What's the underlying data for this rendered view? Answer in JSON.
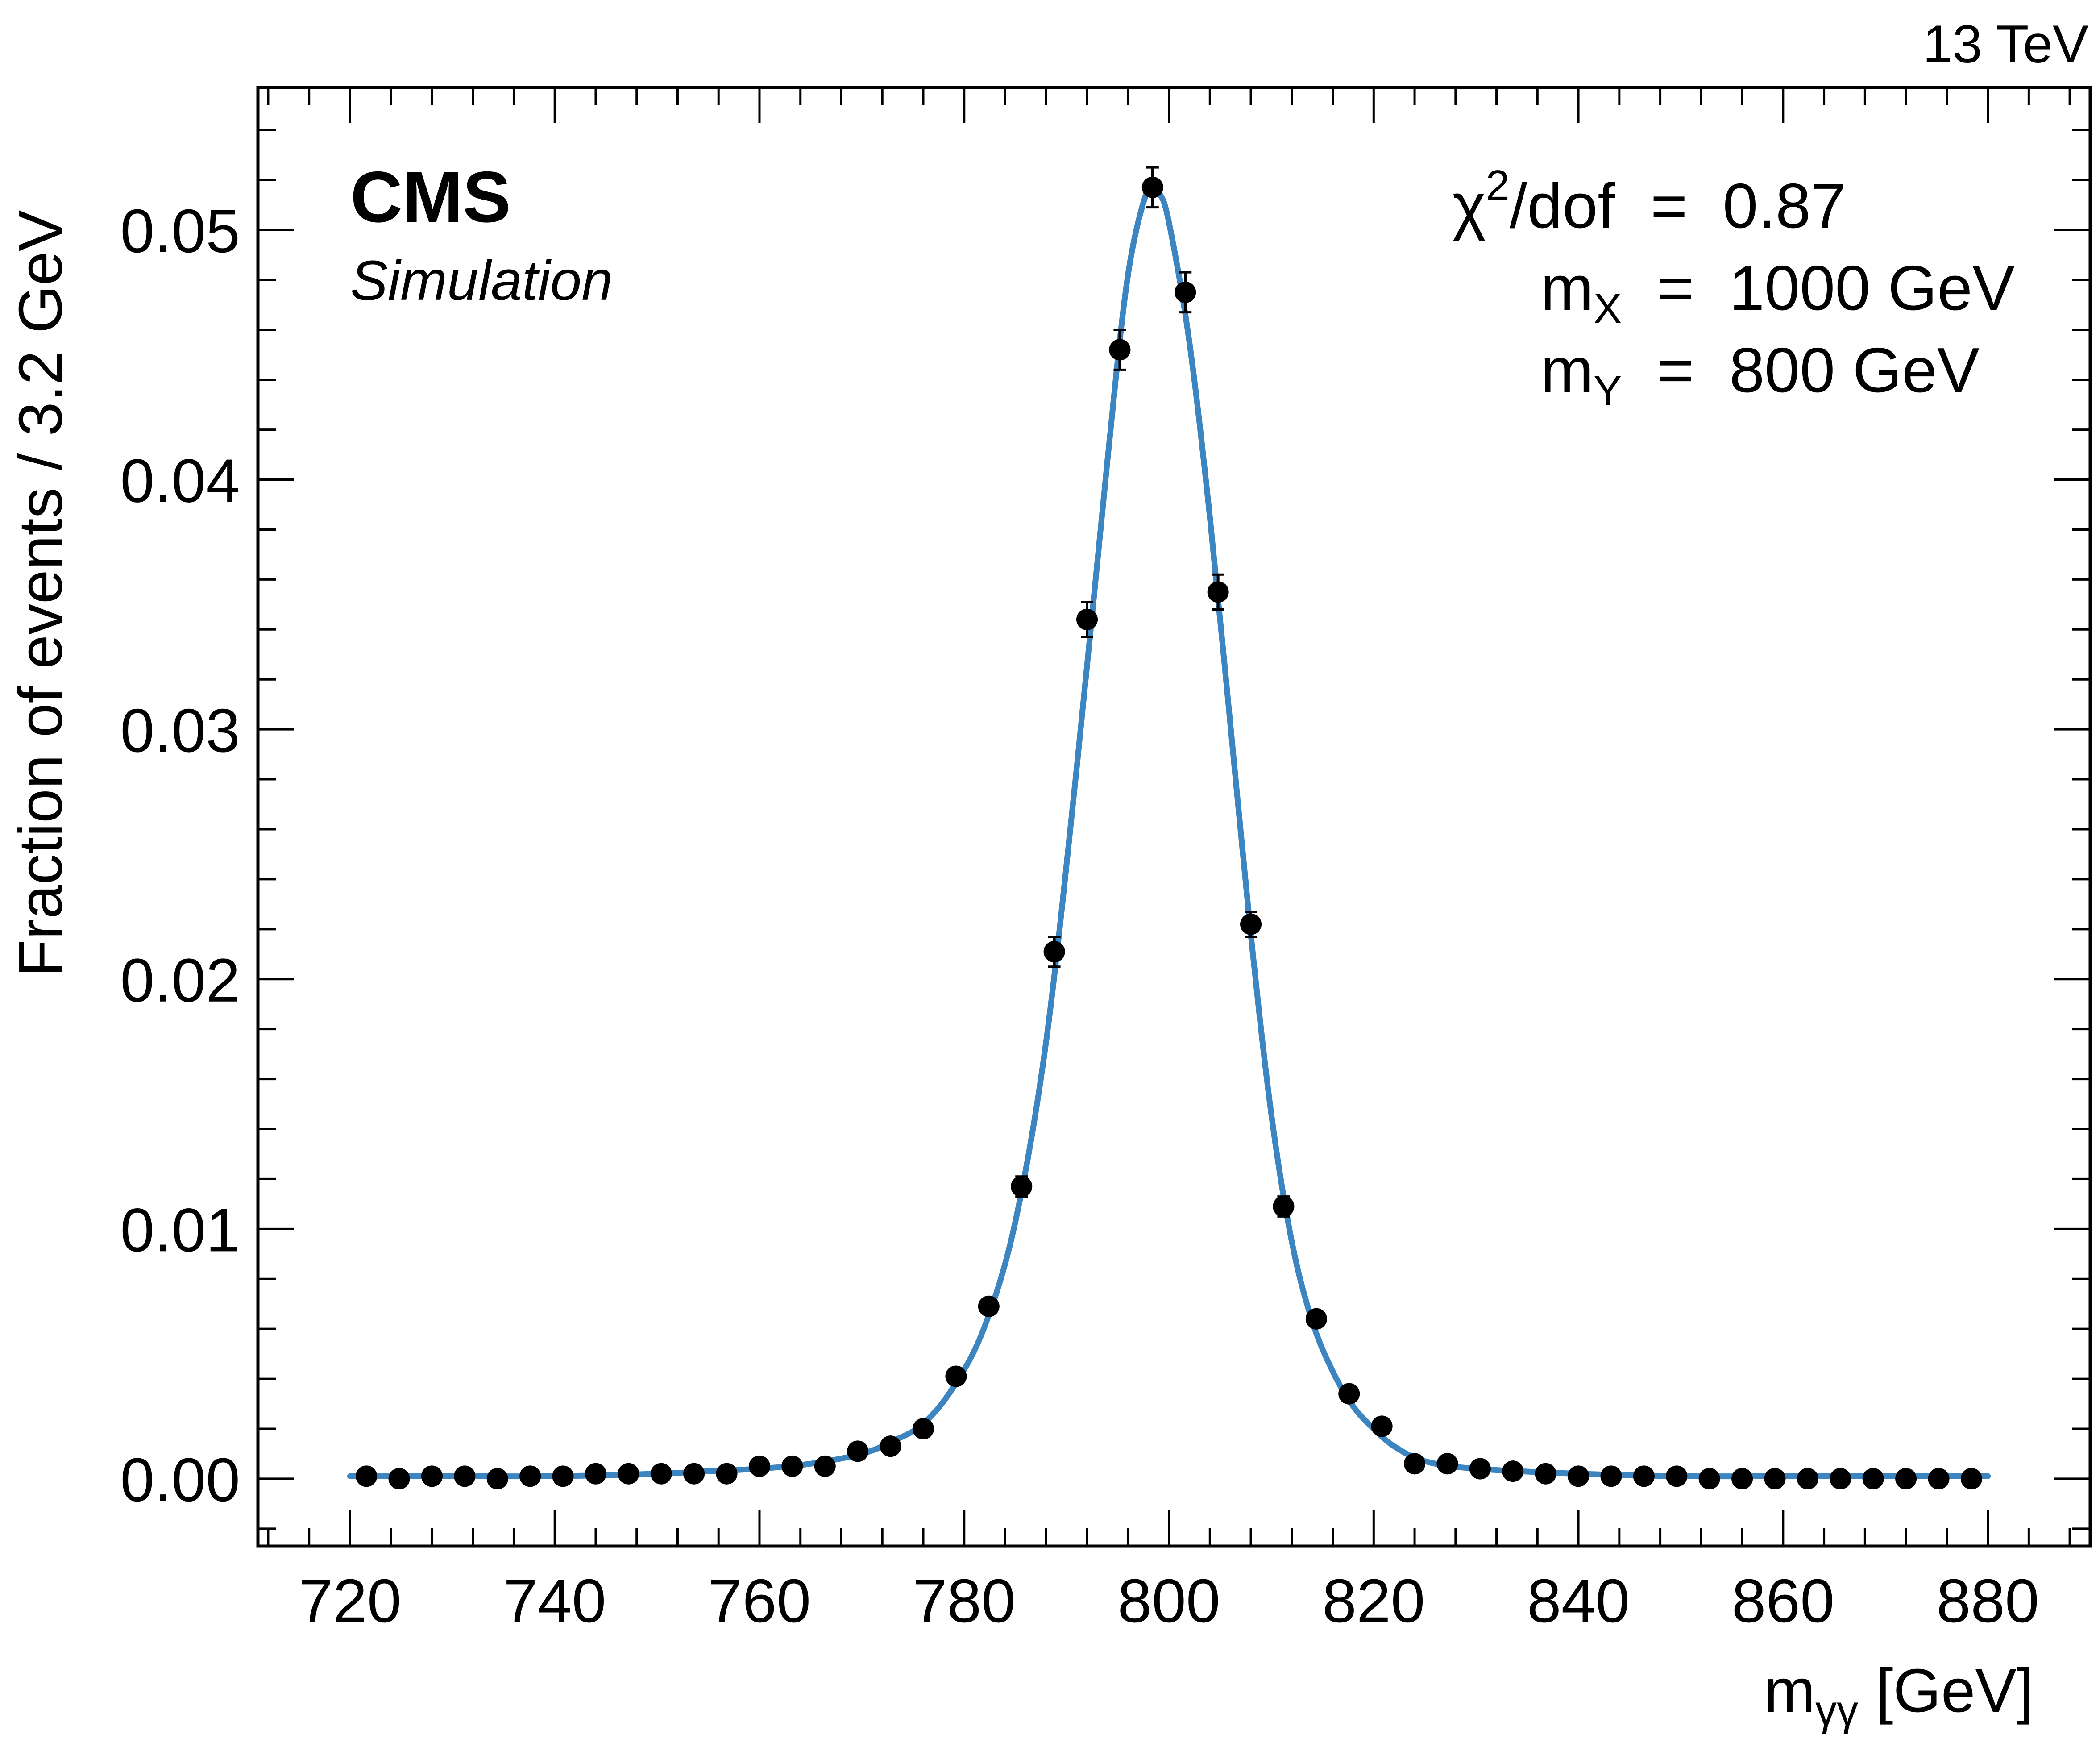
{
  "chart_data": {
    "type": "scatter",
    "experiment": "CMS",
    "experiment_sub": "Simulation",
    "energy": "13 TeV",
    "xlabel": {
      "main": "m",
      "sub": "γγ",
      "unit": "[GeV]"
    },
    "ylabel": "Fraction of events / 3.2 GeV",
    "xlim": [
      711,
      890
    ],
    "ylim": [
      -0.0027,
      0.0557
    ],
    "xticks": [
      720,
      740,
      760,
      780,
      800,
      820,
      840,
      860,
      880
    ],
    "xtick_labels": [
      "720",
      "740",
      "760",
      "780",
      "800",
      "820",
      "840",
      "860",
      "880"
    ],
    "yticks": [
      0.0,
      0.01,
      0.02,
      0.03,
      0.04,
      0.05
    ],
    "ytick_labels": [
      "0.00",
      "0.01",
      "0.02",
      "0.03",
      "0.04",
      "0.05"
    ],
    "grid": false,
    "annotations": {
      "chi2": {
        "sym": "χ",
        "sup": "2",
        "rest": "/dof  =  0.87"
      },
      "mX": {
        "sym": "m",
        "sub": "X",
        "rest": "  =  1000 GeV"
      },
      "mY": {
        "sym": "m",
        "sub": "Y",
        "rest": "  =  800 GeV"
      }
    },
    "series": [
      {
        "kind": "points",
        "color": "#000000",
        "x": [
          721.6,
          724.8,
          728.0,
          731.2,
          734.4,
          737.6,
          740.8,
          744.0,
          747.2,
          750.4,
          753.6,
          756.8,
          760.0,
          763.2,
          766.4,
          769.6,
          772.8,
          776.0,
          779.2,
          782.4,
          785.6,
          788.8,
          792.0,
          795.2,
          798.4,
          801.6,
          804.8,
          808.0,
          811.2,
          814.4,
          817.6,
          820.8,
          824.0,
          827.2,
          830.4,
          833.6,
          836.8,
          840.0,
          843.2,
          846.4,
          849.6,
          852.8,
          856.0,
          859.2,
          862.4,
          865.6,
          868.8,
          872.0,
          875.2,
          878.4
        ],
        "y": [
          0.0001,
          0.0,
          0.0001,
          0.0001,
          0.0,
          0.0001,
          0.0001,
          0.0002,
          0.0002,
          0.0002,
          0.0002,
          0.0002,
          0.0005,
          0.0005,
          0.0005,
          0.0011,
          0.0013,
          0.002,
          0.0041,
          0.0069,
          0.0117,
          0.0211,
          0.0344,
          0.0452,
          0.0517,
          0.0475,
          0.0355,
          0.0222,
          0.0109,
          0.0064,
          0.0034,
          0.0021,
          0.0006,
          0.0006,
          0.0004,
          0.0003,
          0.0002,
          0.0001,
          0.0001,
          0.0001,
          0.0001,
          0.0,
          0.0,
          0.0,
          0.0,
          0.0,
          0.0,
          0.0,
          0.0,
          0.0
        ],
        "yerr": [
          0.0001,
          0.0001,
          0.0001,
          0.0001,
          0.0001,
          0.0001,
          0.0001,
          0.0001,
          0.0001,
          0.0001,
          0.0001,
          0.0001,
          0.0001,
          0.0001,
          0.0001,
          0.0002,
          0.0002,
          0.0002,
          0.0003,
          0.0003,
          0.0004,
          0.0006,
          0.0007,
          0.0008,
          0.0008,
          0.0008,
          0.0007,
          0.0005,
          0.0004,
          0.0003,
          0.0002,
          0.0002,
          0.0001,
          0.0001,
          0.0001,
          0.0001,
          0.0001,
          0.0001,
          0.0001,
          0.0001,
          0.0001,
          0.0001,
          0.0001,
          0.0001,
          0.0001,
          0.0001,
          0.0001,
          0.0001,
          0.0001,
          0.0001
        ]
      },
      {
        "kind": "line",
        "color": "#3d85c0",
        "x": [
          720,
          730,
          740,
          750,
          755,
          760,
          765,
          770,
          773,
          776,
          779,
          782,
          785,
          788,
          791,
          794,
          796,
          798,
          799,
          800,
          802,
          804,
          806,
          808,
          810,
          812,
          814,
          816,
          818,
          820,
          822,
          825,
          830,
          840,
          850,
          860,
          870,
          880
        ],
        "y": [
          0.0001,
          0.0001,
          0.0001,
          0.0002,
          0.0003,
          0.0004,
          0.0006,
          0.001,
          0.0015,
          0.0022,
          0.0037,
          0.0061,
          0.0103,
          0.0175,
          0.0285,
          0.0408,
          0.0482,
          0.0517,
          0.0515,
          0.0503,
          0.0455,
          0.0385,
          0.0302,
          0.0218,
          0.0146,
          0.0095,
          0.0063,
          0.0043,
          0.0029,
          0.002,
          0.0013,
          0.0007,
          0.0004,
          0.0002,
          0.0001,
          0.0001,
          0.0001,
          0.0001
        ]
      }
    ]
  }
}
